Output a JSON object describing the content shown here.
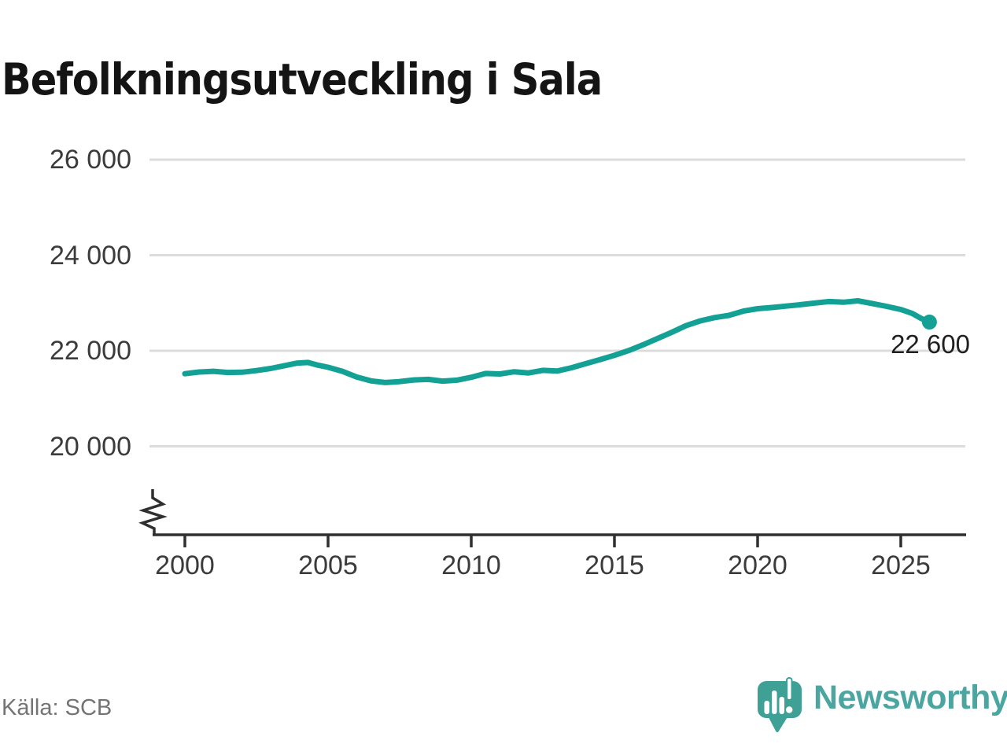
{
  "header": {
    "title": "Befolkningsutveckling i Sala"
  },
  "footer": {
    "source": "Källa: SCB",
    "brand": "Newsworthy"
  },
  "colors": {
    "line": "#14a195",
    "grid": "#dcdcdc",
    "axis": "#2f2f2f",
    "tick_text": "#3b3b3b",
    "annotation": "#1f1f1f",
    "source_text": "#747474",
    "brand_teal": "#3fa096"
  },
  "chart_data": {
    "type": "line",
    "title": "Befolkningsutveckling i Sala",
    "xlabel": "",
    "ylabel": "",
    "source": "Källa: SCB",
    "grid": "horizontal",
    "y_axis_break": true,
    "xlim": [
      1999.8,
      2027.3
    ],
    "ylim": [
      19500,
      26300
    ],
    "x_ticks": [
      2000,
      2005,
      2010,
      2015,
      2020,
      2025
    ],
    "y_ticks": [
      {
        "value": 20000,
        "label": "20 000"
      },
      {
        "value": 22000,
        "label": "22 000"
      },
      {
        "value": 24000,
        "label": "24 000"
      },
      {
        "value": 26000,
        "label": "26 000"
      }
    ],
    "last_point_label": "22 600",
    "last_point": {
      "x": 2026.0,
      "y": 22600
    },
    "series": [
      {
        "name": "Befolkning",
        "points": [
          [
            2000.0,
            21520
          ],
          [
            2000.5,
            21555
          ],
          [
            2001.0,
            21570
          ],
          [
            2001.5,
            21545
          ],
          [
            2002.0,
            21550
          ],
          [
            2002.5,
            21585
          ],
          [
            2003.0,
            21630
          ],
          [
            2003.5,
            21690
          ],
          [
            2003.9,
            21740
          ],
          [
            2004.3,
            21755
          ],
          [
            2004.6,
            21705
          ],
          [
            2005.0,
            21655
          ],
          [
            2005.5,
            21570
          ],
          [
            2006.0,
            21450
          ],
          [
            2006.5,
            21370
          ],
          [
            2007.0,
            21335
          ],
          [
            2007.5,
            21355
          ],
          [
            2008.0,
            21390
          ],
          [
            2008.5,
            21400
          ],
          [
            2009.0,
            21365
          ],
          [
            2009.5,
            21385
          ],
          [
            2010.0,
            21445
          ],
          [
            2010.5,
            21525
          ],
          [
            2011.0,
            21515
          ],
          [
            2011.5,
            21560
          ],
          [
            2012.0,
            21535
          ],
          [
            2012.5,
            21590
          ],
          [
            2013.0,
            21575
          ],
          [
            2013.5,
            21645
          ],
          [
            2014.0,
            21730
          ],
          [
            2014.5,
            21815
          ],
          [
            2015.0,
            21905
          ],
          [
            2015.5,
            22005
          ],
          [
            2016.0,
            22125
          ],
          [
            2016.5,
            22255
          ],
          [
            2017.0,
            22385
          ],
          [
            2017.5,
            22525
          ],
          [
            2018.0,
            22625
          ],
          [
            2018.5,
            22695
          ],
          [
            2019.0,
            22740
          ],
          [
            2019.5,
            22830
          ],
          [
            2020.0,
            22880
          ],
          [
            2020.5,
            22905
          ],
          [
            2021.0,
            22935
          ],
          [
            2021.5,
            22965
          ],
          [
            2022.0,
            23000
          ],
          [
            2022.5,
            23030
          ],
          [
            2023.0,
            23015
          ],
          [
            2023.5,
            23045
          ],
          [
            2024.0,
            22990
          ],
          [
            2024.5,
            22930
          ],
          [
            2025.0,
            22865
          ],
          [
            2025.4,
            22780
          ],
          [
            2025.7,
            22680
          ],
          [
            2026.0,
            22600
          ]
        ]
      }
    ]
  }
}
